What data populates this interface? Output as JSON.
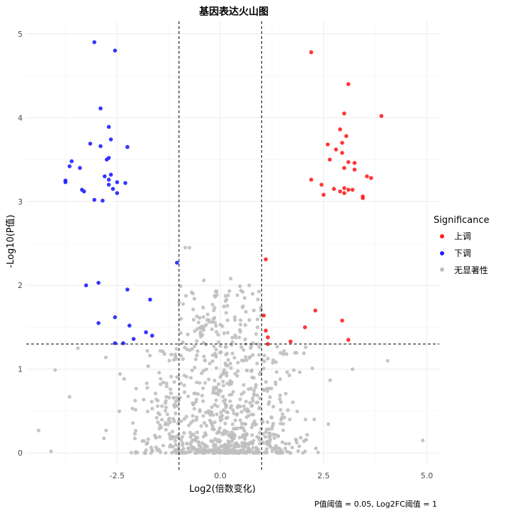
{
  "chart_data": {
    "type": "scatter",
    "title": "基因表达火山图",
    "xlabel": "Log2(倍数变化)",
    "ylabel": "-Log10(P值)",
    "caption": "P值阈值 = 0.05, Log2FC阈值 = 1",
    "xlim": [
      -4.7,
      5.3
    ],
    "ylim": [
      -0.15,
      5.15
    ],
    "x_ticks": [
      -2.5,
      0.0,
      2.5,
      5.0
    ],
    "x_tick_labels": [
      "-2.5",
      "0.0",
      "2.5",
      "5.0"
    ],
    "y_ticks": [
      0,
      1,
      2,
      3,
      4,
      5
    ],
    "y_tick_labels": [
      "0",
      "1",
      "2",
      "3",
      "4",
      "5"
    ],
    "grid": true,
    "thresholds": {
      "x": [
        -1,
        1
      ],
      "y": 1.301
    },
    "legend": {
      "title": "Significance",
      "placement": "right",
      "entries": [
        {
          "label": "上调",
          "color": "#ff2020"
        },
        {
          "label": "下调",
          "color": "#2020ff"
        },
        {
          "label": "无显著性",
          "color": "#bfbfbf"
        }
      ]
    },
    "series": [
      {
        "name": "上调",
        "color": "#ff2020",
        "points": [
          [
            2.2,
            4.78
          ],
          [
            3.1,
            4.4
          ],
          [
            3.0,
            4.05
          ],
          [
            3.9,
            4.02
          ],
          [
            2.9,
            3.86
          ],
          [
            3.05,
            3.78
          ],
          [
            2.6,
            3.68
          ],
          [
            2.95,
            3.7
          ],
          [
            2.8,
            3.62
          ],
          [
            2.95,
            3.58
          ],
          [
            2.65,
            3.5
          ],
          [
            3.1,
            3.47
          ],
          [
            3.25,
            3.46
          ],
          [
            3.25,
            3.38
          ],
          [
            3.0,
            3.4
          ],
          [
            2.2,
            3.26
          ],
          [
            3.55,
            3.3
          ],
          [
            3.65,
            3.28
          ],
          [
            2.45,
            3.2
          ],
          [
            2.75,
            3.15
          ],
          [
            3.0,
            3.16
          ],
          [
            3.1,
            3.14
          ],
          [
            2.9,
            3.12
          ],
          [
            3.2,
            3.14
          ],
          [
            3.0,
            3.1
          ],
          [
            2.5,
            3.08
          ],
          [
            3.45,
            3.06
          ],
          [
            3.45,
            3.04
          ],
          [
            1.1,
            2.31
          ],
          [
            1.05,
            1.64
          ],
          [
            2.3,
            1.7
          ],
          [
            2.95,
            1.58
          ],
          [
            2.05,
            1.5
          ],
          [
            1.1,
            1.46
          ],
          [
            1.15,
            1.38
          ],
          [
            1.7,
            1.33
          ],
          [
            3.1,
            1.35
          ],
          [
            1.15,
            1.3
          ]
        ]
      },
      {
        "name": "下调",
        "color": "#2020ff",
        "points": [
          [
            -3.05,
            4.9
          ],
          [
            -2.55,
            4.8
          ],
          [
            -2.9,
            4.11
          ],
          [
            -2.7,
            3.89
          ],
          [
            -2.65,
            3.74
          ],
          [
            -3.15,
            3.69
          ],
          [
            -2.9,
            3.66
          ],
          [
            -2.25,
            3.65
          ],
          [
            -2.7,
            3.52
          ],
          [
            -2.75,
            3.5
          ],
          [
            -3.6,
            3.48
          ],
          [
            -3.65,
            3.42
          ],
          [
            -3.4,
            3.4
          ],
          [
            -2.65,
            3.32
          ],
          [
            -2.8,
            3.3
          ],
          [
            -2.7,
            3.26
          ],
          [
            -3.75,
            3.25
          ],
          [
            -3.75,
            3.23
          ],
          [
            -2.5,
            3.23
          ],
          [
            -2.3,
            3.22
          ],
          [
            -2.7,
            3.2
          ],
          [
            -2.6,
            3.15
          ],
          [
            -3.35,
            3.14
          ],
          [
            -3.3,
            3.12
          ],
          [
            -2.5,
            3.1
          ],
          [
            -3.05,
            3.02
          ],
          [
            -2.85,
            3.01
          ],
          [
            -1.05,
            2.27
          ],
          [
            -2.95,
            2.03
          ],
          [
            -3.25,
            2.0
          ],
          [
            -2.25,
            1.95
          ],
          [
            -1.7,
            1.83
          ],
          [
            -2.55,
            1.62
          ],
          [
            -2.95,
            1.55
          ],
          [
            -2.2,
            1.52
          ],
          [
            -1.8,
            1.44
          ],
          [
            -1.65,
            1.4
          ],
          [
            -2.1,
            1.36
          ],
          [
            -2.55,
            1.31
          ],
          [
            -2.35,
            1.31
          ]
        ]
      },
      {
        "name": "无显著性",
        "color": "#bfbfbf",
        "generated": true,
        "count": 900,
        "x_range": [
          -4.4,
          4.9
        ],
        "y_range": [
          0.0,
          2.45
        ],
        "sample_points": [
          [
            -0.85,
            2.45
          ],
          [
            -0.75,
            2.45
          ],
          [
            -0.4,
            2.06
          ],
          [
            0.25,
            2.08
          ],
          [
            0.7,
            2.0
          ],
          [
            -0.1,
            1.93
          ],
          [
            0.55,
            1.75
          ],
          [
            -4.0,
            0.99
          ],
          [
            -3.65,
            0.67
          ],
          [
            -3.45,
            1.25
          ],
          [
            -4.4,
            0.27
          ],
          [
            -4.1,
            0.02
          ],
          [
            4.05,
            1.1
          ],
          [
            4.9,
            0.15
          ],
          [
            3.2,
            1.0
          ],
          [
            -0.95,
            1.6
          ],
          [
            0.35,
            1.62
          ],
          [
            0.9,
            1.5
          ]
        ]
      }
    ]
  }
}
